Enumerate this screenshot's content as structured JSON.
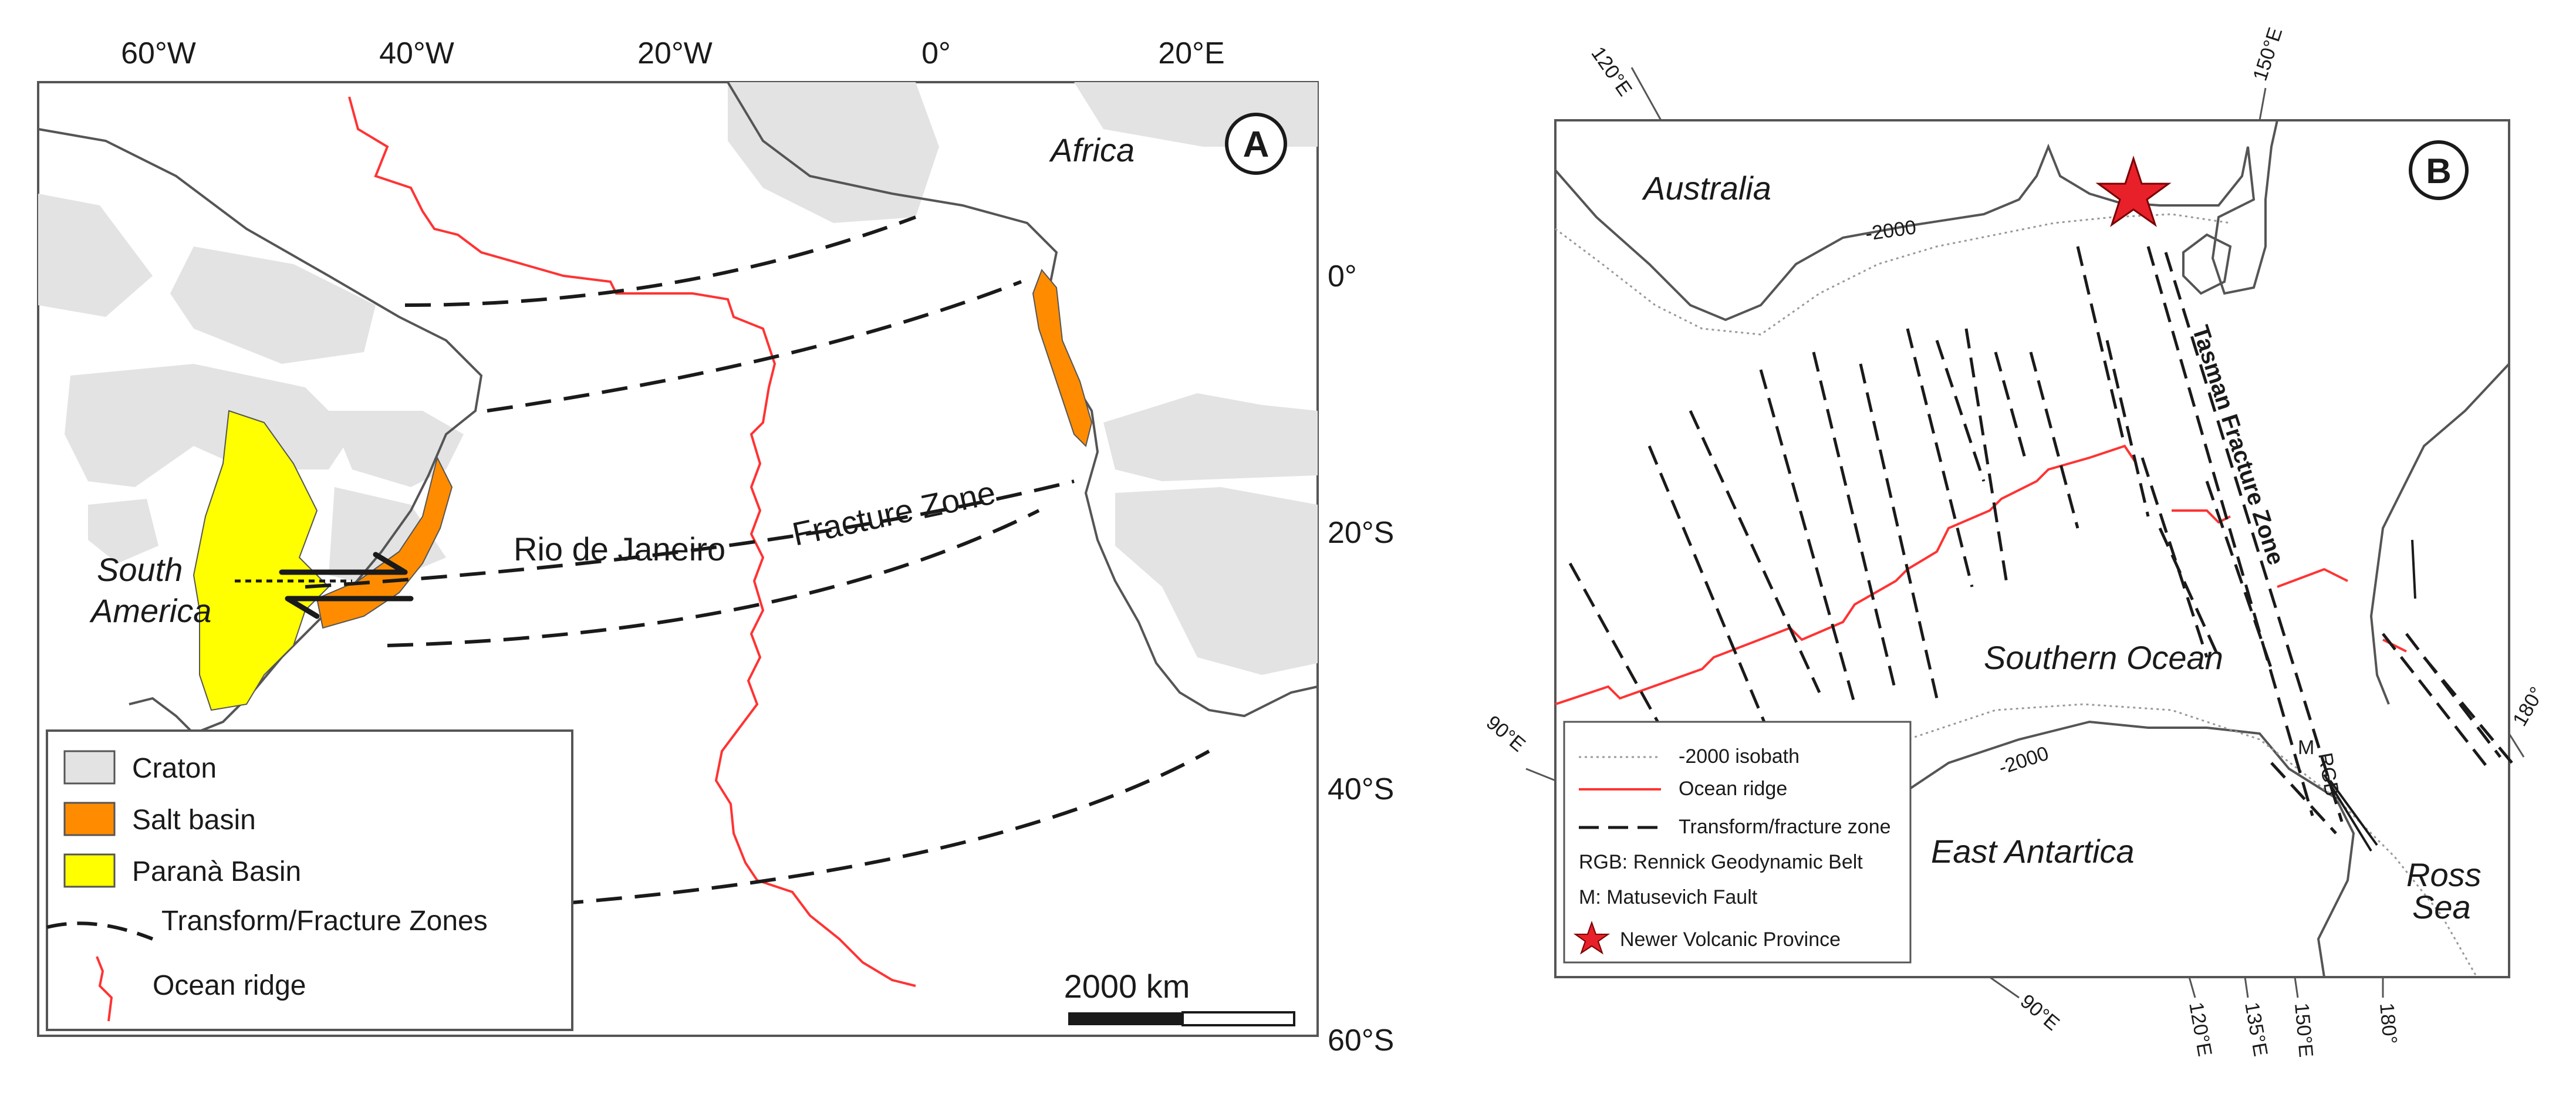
{
  "panel_a": {
    "badge": "A",
    "top_ticks": [
      "60°W",
      "40°W",
      "20°W",
      "0°",
      "20°E"
    ],
    "right_ticks": [
      "0°",
      "20°S",
      "40°S",
      "60°S"
    ],
    "labels": {
      "africa": "Africa",
      "south_america_1": "South",
      "south_america_2": "America",
      "rio": "Rio de Janeiro",
      "fracture": "Fracture Zone"
    },
    "scale_bar": "2000 km",
    "legend": {
      "craton": "Craton",
      "salt": "Salt basin",
      "parana": "Paranà Basin",
      "transform": "Transform/Fracture Zones",
      "ridge": "Ocean ridge"
    },
    "colors": {
      "craton": "#e3e3e3",
      "salt": "#ff8c00",
      "parana": "#ffff00",
      "ridge": "#ff3333"
    }
  },
  "panel_b": {
    "badge": "B",
    "top_ticks": [
      "120°E",
      "150°E"
    ],
    "left_ticks": [
      "90°E"
    ],
    "right_ticks": [
      "180°"
    ],
    "bottom_ticks": [
      "90°E",
      "120°E",
      "135°E",
      "150°E",
      "180°"
    ],
    "labels": {
      "australia": "Australia",
      "southern_ocean": "Southern Ocean",
      "east_antarctica": "East Antartica",
      "ross_1": "Ross",
      "ross_2": "Sea",
      "tasman": "Tasman Fracture Zone",
      "isobath_1": "-2000",
      "isobath_2": "-2000",
      "rgb": "RGB",
      "m": "M"
    },
    "legend": {
      "isobath": "-2000 isobath",
      "ridge": "Ocean ridge",
      "transform": "Transform/fracture zone",
      "rgb": "RGB: Rennick Geodynamic Belt",
      "m": "M: Matusevich Fault",
      "nvp": "Newer Volcanic Province"
    },
    "colors": {
      "ridge": "#ff3333",
      "star": "#e8202a"
    }
  }
}
